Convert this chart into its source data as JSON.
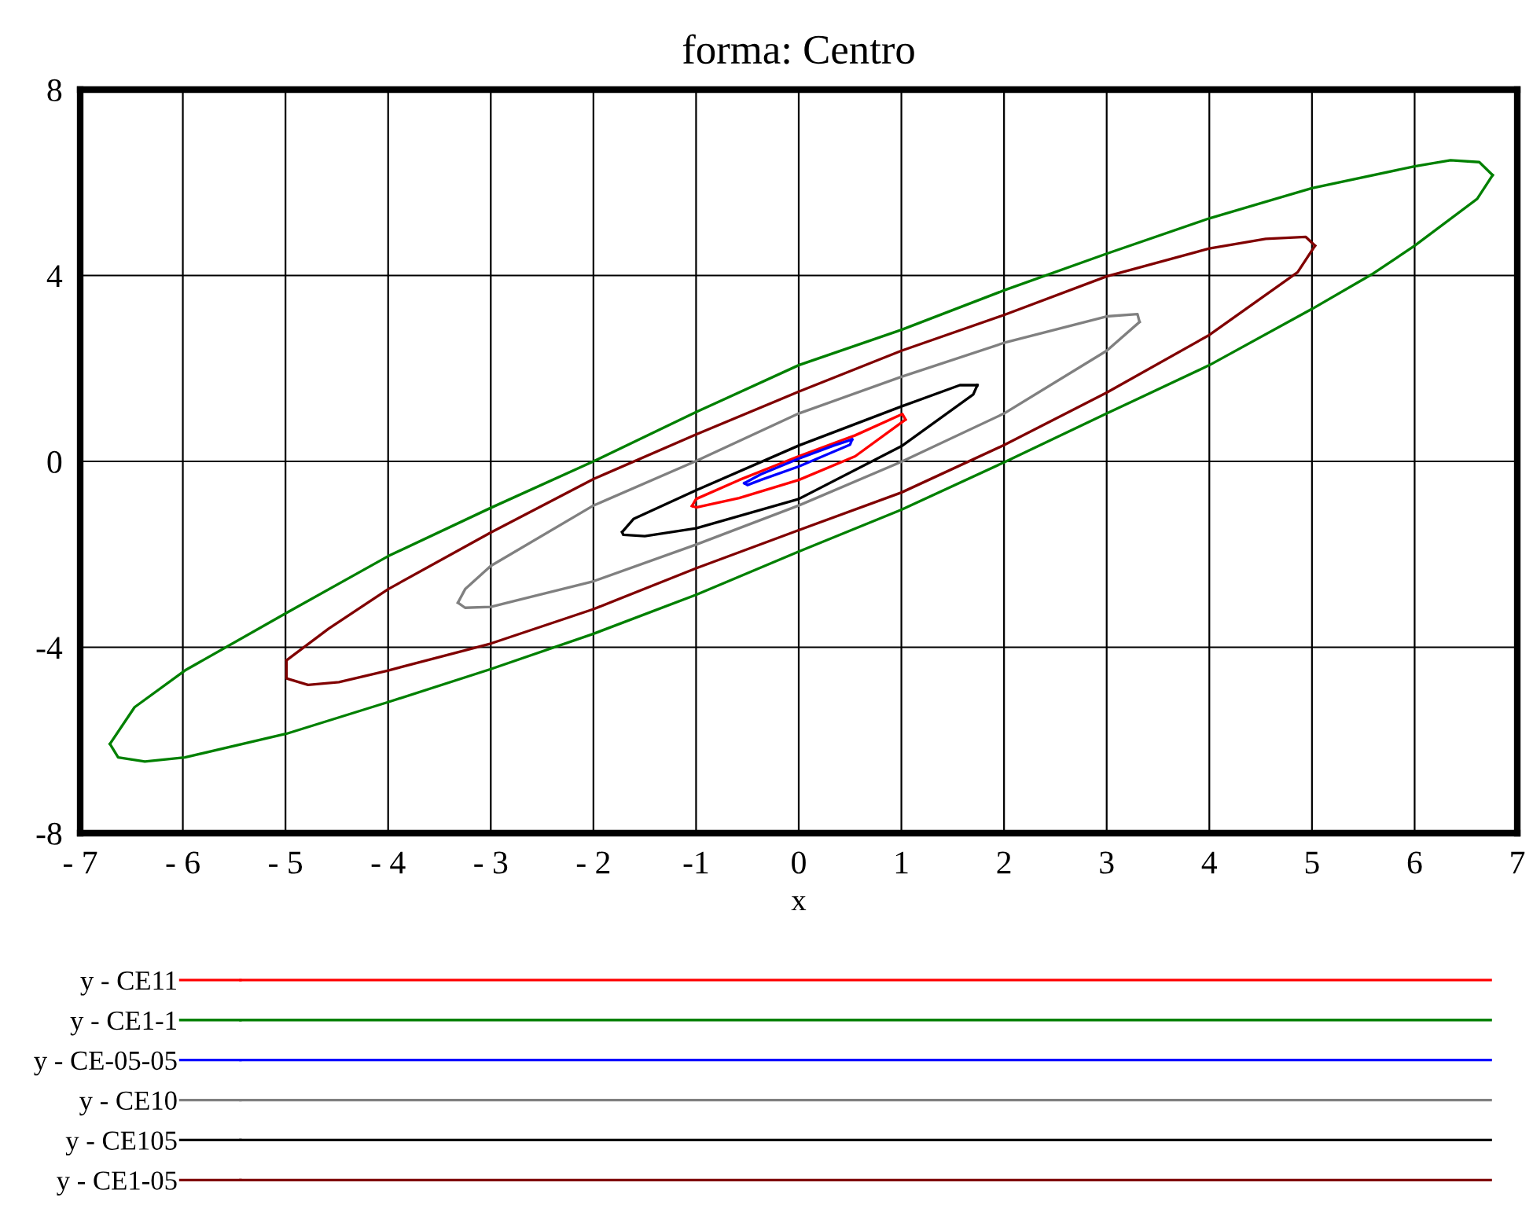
{
  "chart_data": {
    "type": "line",
    "title": "forma: Centro",
    "xlabel": "x",
    "xlim": [
      -7,
      7
    ],
    "ylim": [
      -8,
      8
    ],
    "xticks": [
      {
        "value": -7,
        "label": "- 7"
      },
      {
        "value": -6,
        "label": "- 6"
      },
      {
        "value": -5,
        "label": "- 5"
      },
      {
        "value": -4,
        "label": "- 4"
      },
      {
        "value": -3,
        "label": "- 3"
      },
      {
        "value": -2,
        "label": "- 2"
      },
      -1,
      0,
      1,
      2,
      3,
      4,
      5,
      6,
      7
    ],
    "yticks": [
      -8,
      -4,
      0,
      4,
      8
    ],
    "grid": true,
    "legend": "bottom",
    "series": [
      {
        "name": "y - CE11",
        "color": "#ff0000",
        "x": [
          -1.04,
          -1.0,
          -0.58,
          0.0,
          0.55,
          1.01,
          1.04
        ],
        "values": [
          -0.96,
          -0.81,
          -0.4,
          0.11,
          0.56,
          1.02,
          0.9
        ]
      },
      {
        "color": "#ff0000",
        "x": [
          1.04,
          0.55,
          0.0,
          -0.58,
          -1.0,
          -1.04
        ],
        "values": [
          0.9,
          0.11,
          -0.4,
          -0.79,
          -0.99,
          -0.96
        ]
      },
      {
        "name": "y - CE1-1",
        "color": "#008000",
        "x": [
          -6.71,
          -6.47,
          -5.98,
          -4.99,
          -4.0,
          -3.0,
          -2.0,
          -1.0,
          0.0,
          1.0,
          2.0,
          3.0,
          4.0,
          5.0,
          6.0,
          6.35,
          6.63,
          6.76
        ],
        "values": [
          -6.08,
          -5.29,
          -4.5,
          -3.26,
          -2.04,
          -1.0,
          0.0,
          1.06,
          2.07,
          2.83,
          3.68,
          4.47,
          5.23,
          5.88,
          6.35,
          6.48,
          6.44,
          6.16
        ]
      },
      {
        "color": "#008000",
        "x": [
          6.76,
          6.61,
          6.0,
          5.58,
          5.0,
          4.0,
          3.0,
          2.0,
          1.0,
          0.0,
          -1.0,
          -2.0,
          -3.0,
          -4.0,
          -4.99,
          -5.98,
          -6.37,
          -6.63,
          -6.71
        ],
        "values": [
          6.16,
          5.65,
          4.64,
          4.02,
          3.28,
          2.07,
          1.03,
          -0.02,
          -1.04,
          -1.94,
          -2.87,
          -3.71,
          -4.47,
          -5.18,
          -5.86,
          -6.37,
          -6.46,
          -6.37,
          -6.08
        ]
      },
      {
        "name": "y - CE-05-05",
        "color": "#0000ff",
        "x": [
          -0.53,
          -0.37,
          0.0,
          0.34,
          0.52
        ],
        "values": [
          -0.47,
          -0.28,
          0.06,
          0.34,
          0.47
        ]
      },
      {
        "color": "#0000ff",
        "x": [
          0.52,
          0.5,
          0.0,
          -0.37,
          -0.5,
          -0.53
        ],
        "values": [
          0.47,
          0.36,
          -0.11,
          -0.4,
          -0.51,
          -0.47
        ]
      },
      {
        "name": "y - CE10",
        "color": "#808080",
        "x": [
          -3.32,
          -3.25,
          -3.0,
          -2.0,
          -1.0,
          0.0,
          1.0,
          2.0,
          3.0,
          3.3,
          3.32
        ],
        "values": [
          -3.04,
          -2.75,
          -2.25,
          -0.95,
          0.01,
          1.03,
          1.82,
          2.55,
          3.12,
          3.17,
          3.0
        ]
      },
      {
        "color": "#808080",
        "x": [
          3.32,
          3.0,
          2.0,
          1.0,
          0.0,
          -1.0,
          -2.0,
          -3.0,
          -3.25,
          -3.32
        ],
        "values": [
          3.0,
          2.38,
          1.03,
          -0.01,
          -0.95,
          -1.79,
          -2.58,
          -3.13,
          -3.15,
          -3.04
        ]
      },
      {
        "name": "y - CE105",
        "color": "#000000",
        "x": [
          -1.72,
          -1.61,
          -1.0,
          0.0,
          1.01,
          1.57,
          1.74
        ],
        "values": [
          -1.52,
          -1.24,
          -0.62,
          0.34,
          1.19,
          1.64,
          1.64
        ]
      },
      {
        "color": "#000000",
        "x": [
          1.74,
          1.7,
          1.01,
          0.0,
          -1.0,
          -1.5,
          -1.71,
          -1.72
        ],
        "values": [
          1.64,
          1.44,
          0.34,
          -0.81,
          -1.44,
          -1.61,
          -1.58,
          -1.52
        ]
      },
      {
        "name": "y - CE1-05",
        "color": "#800000",
        "x": [
          -4.99,
          -4.58,
          -4.0,
          -3.0,
          -2.0,
          -1.0,
          0.0,
          1.0,
          2.0,
          3.0,
          4.0,
          4.55,
          4.94,
          5.03
        ],
        "values": [
          -4.28,
          -3.6,
          -2.75,
          -1.53,
          -0.38,
          0.58,
          1.5,
          2.38,
          3.15,
          3.98,
          4.58,
          4.79,
          4.83,
          4.64
        ]
      },
      {
        "color": "#800000",
        "x": [
          5.03,
          4.86,
          4.0,
          3.0,
          2.0,
          1.0,
          0.0,
          -1.0,
          -2.0,
          -3.0,
          -4.0,
          -4.48,
          -4.78,
          -4.99,
          -4.99
        ],
        "values": [
          4.64,
          4.07,
          2.72,
          1.48,
          0.35,
          -0.67,
          -1.48,
          -2.3,
          -3.18,
          -3.92,
          -4.5,
          -4.75,
          -4.81,
          -4.67,
          -4.28
        ]
      }
    ]
  }
}
